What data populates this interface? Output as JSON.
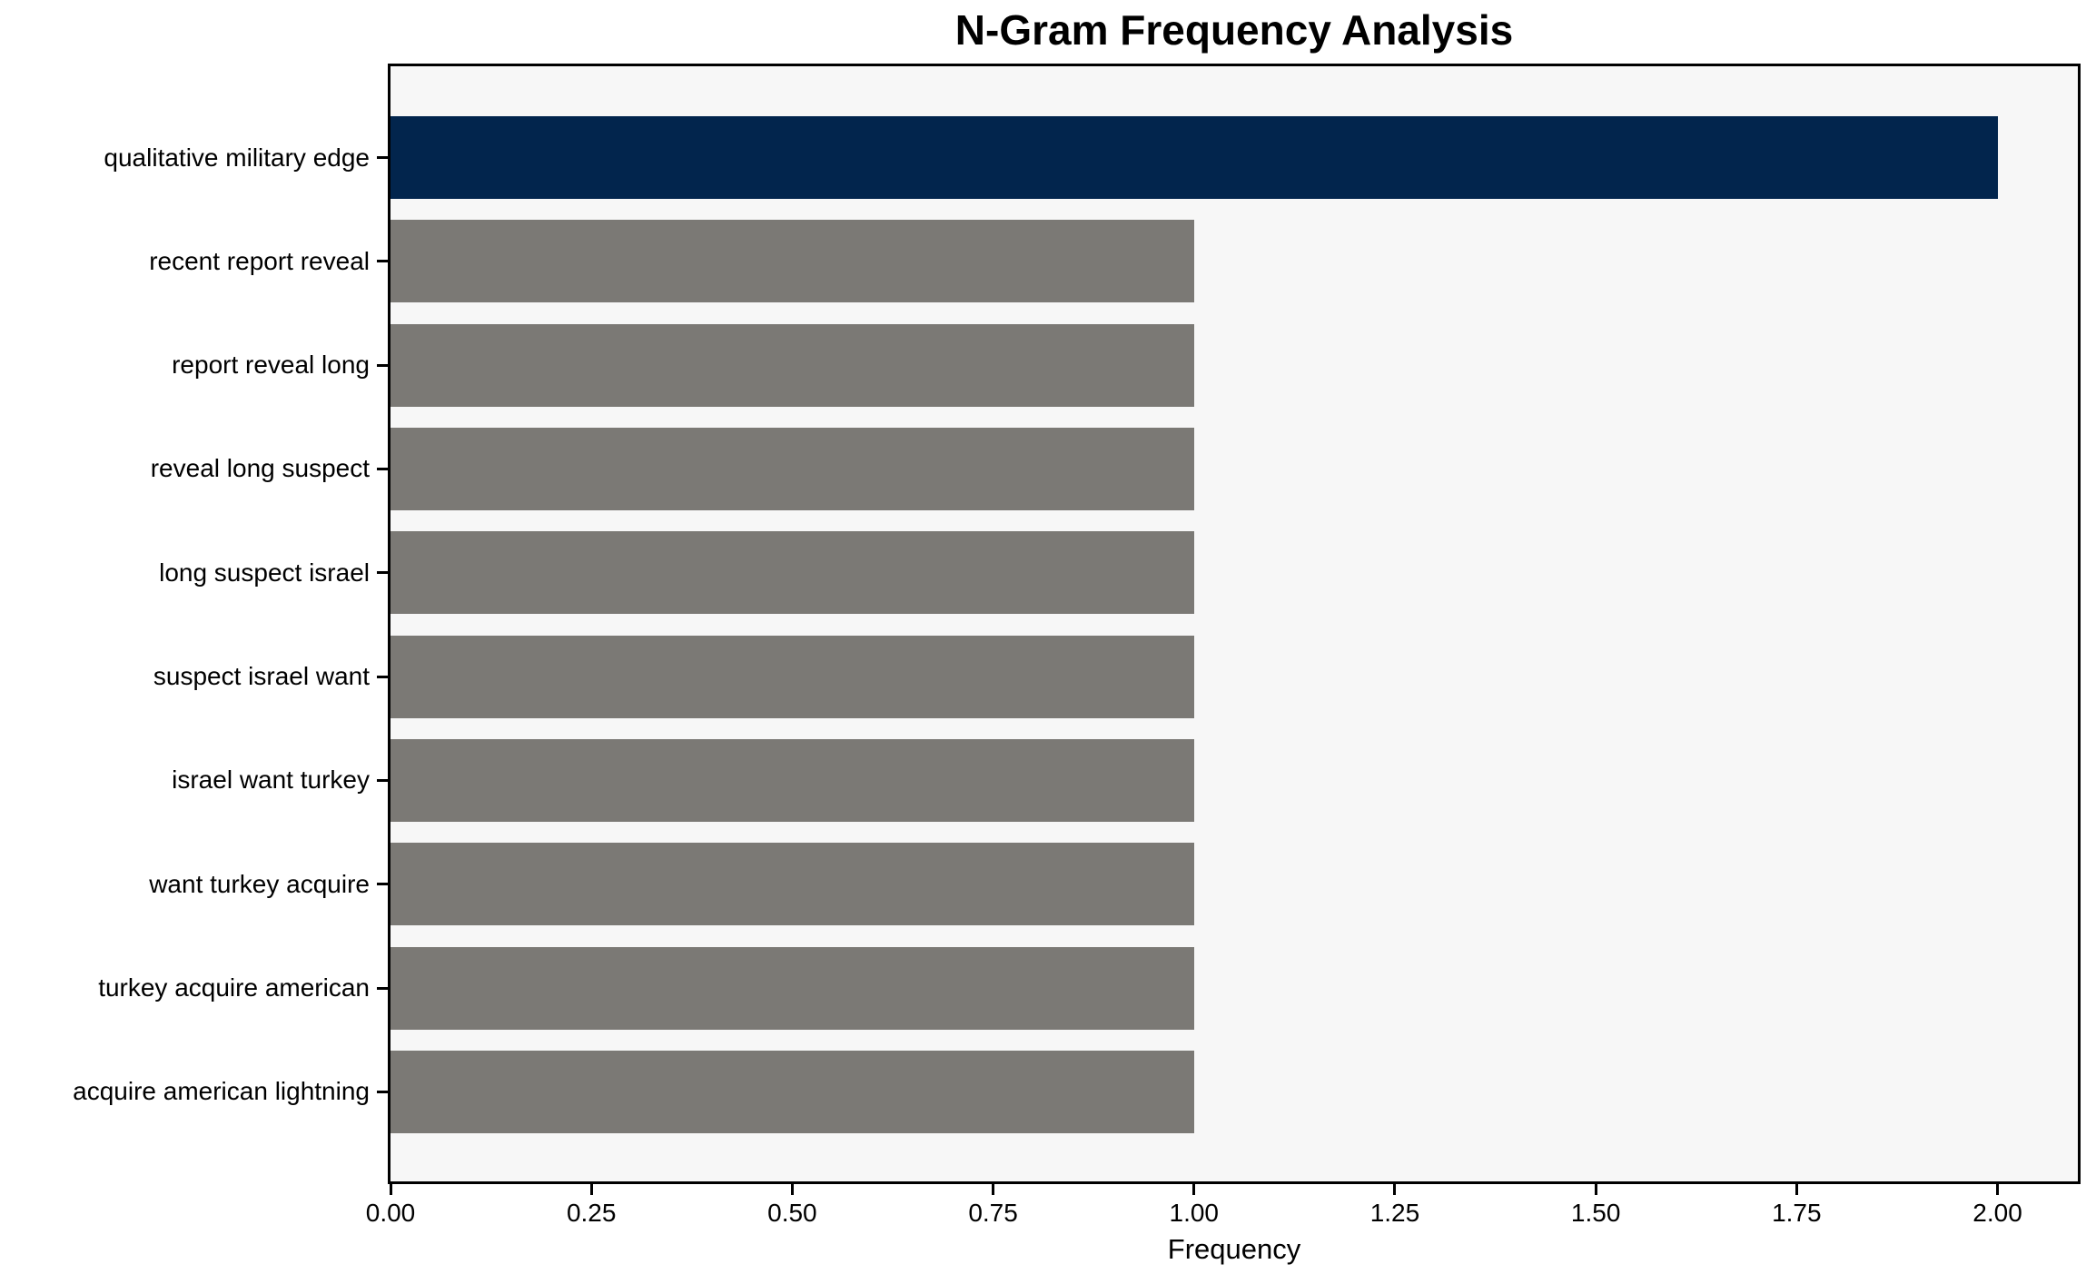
{
  "chart": {
    "title": "N-Gram Frequency Analysis",
    "xlabel": "Frequency"
  },
  "chart_data": {
    "type": "bar",
    "orientation": "horizontal",
    "title": "N-Gram Frequency Analysis",
    "xlabel": "Frequency",
    "ylabel": "",
    "categories": [
      "qualitative military edge",
      "recent report reveal",
      "report reveal long",
      "reveal long suspect",
      "long suspect israel",
      "suspect israel want",
      "israel want turkey",
      "want turkey acquire",
      "turkey acquire american",
      "acquire american lightning"
    ],
    "values": [
      2.0,
      1.0,
      1.0,
      1.0,
      1.0,
      1.0,
      1.0,
      1.0,
      1.0,
      1.0
    ],
    "bar_colors": [
      "#02254d",
      "#7b7975",
      "#7b7975",
      "#7b7975",
      "#7b7975",
      "#7b7975",
      "#7b7975",
      "#7b7975",
      "#7b7975",
      "#7b7975"
    ],
    "xlim": [
      0,
      2.1
    ],
    "xticks": [
      0.0,
      0.25,
      0.5,
      0.75,
      1.0,
      1.25,
      1.5,
      1.75,
      2.0
    ],
    "xtick_labels": [
      "0.00",
      "0.25",
      "0.50",
      "0.75",
      "1.00",
      "1.25",
      "1.50",
      "1.75",
      "2.00"
    ],
    "grid": false,
    "legend": false,
    "colors": {
      "highlight_bar": "#02254d",
      "default_bar": "#7b7975",
      "plot_background": "#f7f7f7",
      "figure_background": "#ffffff",
      "axis": "#000000",
      "text": "#000000"
    }
  }
}
